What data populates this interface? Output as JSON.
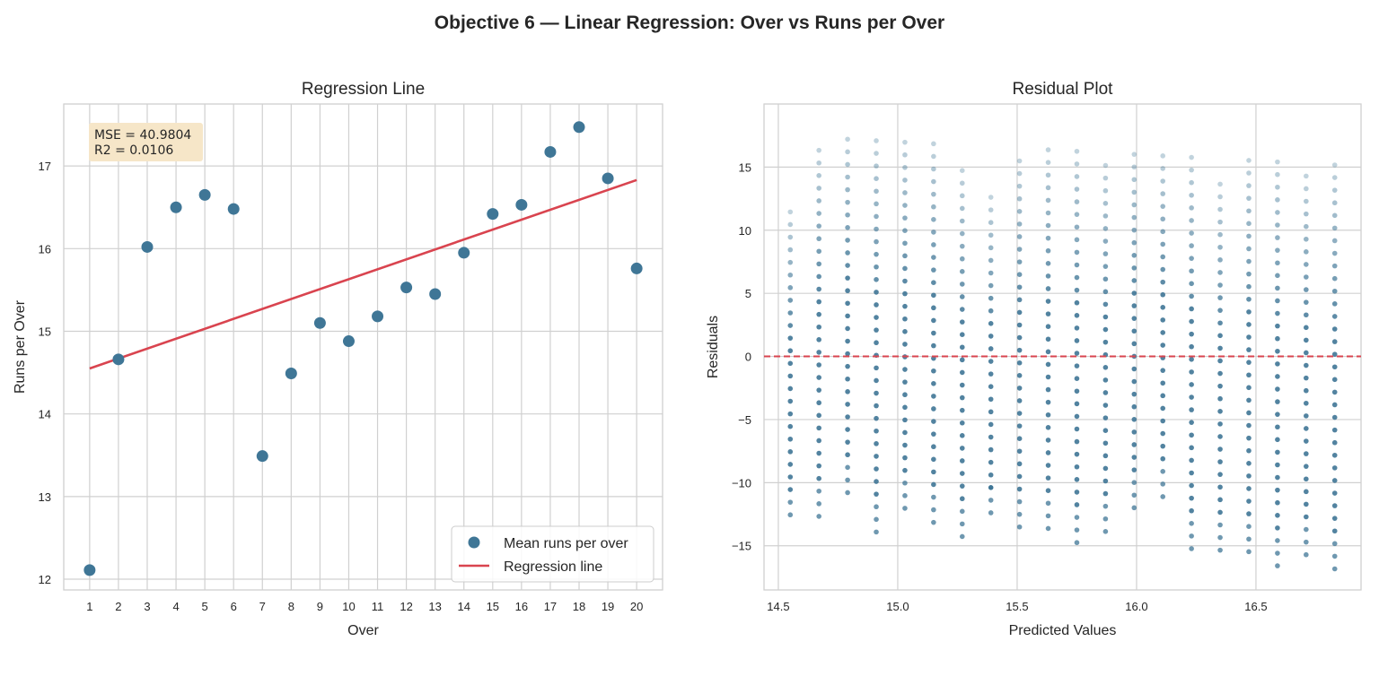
{
  "figure": {
    "suptitle": "Objective 6 — Linear Regression: Over vs Runs per Over"
  },
  "colors": {
    "point": "#3f7696",
    "line": "#d9444f",
    "grid": "#d0d0d0",
    "annotation_bg": "#f6e6c8"
  },
  "chart_data": [
    {
      "type": "scatter",
      "title": "Regression Line",
      "xlabel": "Over",
      "ylabel": "Runs per Over",
      "xlim": [
        0.1,
        20.9
      ],
      "ylim": [
        11.87,
        17.75
      ],
      "xticks": [
        1,
        2,
        3,
        4,
        5,
        6,
        7,
        8,
        9,
        10,
        11,
        12,
        13,
        14,
        15,
        16,
        17,
        18,
        19,
        20
      ],
      "yticks": [
        12,
        13,
        14,
        15,
        16,
        17
      ],
      "grid": true,
      "legend_position": "lower right",
      "series": [
        {
          "name": "Mean runs per over",
          "kind": "scatter",
          "x": [
            1,
            2,
            3,
            4,
            5,
            6,
            7,
            8,
            9,
            10,
            11,
            12,
            13,
            14,
            15,
            16,
            17,
            18,
            19,
            20
          ],
          "y": [
            12.11,
            14.66,
            16.02,
            16.5,
            16.65,
            16.48,
            13.49,
            14.49,
            15.1,
            14.88,
            15.18,
            15.53,
            15.45,
            15.95,
            16.42,
            16.53,
            17.17,
            17.47,
            16.85,
            15.76
          ]
        },
        {
          "name": "Regression line",
          "kind": "line",
          "x": [
            1,
            20
          ],
          "y": [
            14.55,
            16.83
          ]
        }
      ],
      "annotation": {
        "mse": "MSE = 40.9804",
        "r2": "R2  = 0.0106"
      }
    },
    {
      "type": "scatter",
      "title": "Residual Plot",
      "xlabel": "Predicted Values",
      "ylabel": "Residuals",
      "xlim": [
        14.44,
        16.94
      ],
      "ylim": [
        -18.5,
        20.0
      ],
      "xticks": [
        14.5,
        15.0,
        15.5,
        16.0,
        16.5
      ],
      "xtick_labels": [
        "14.5",
        "15.0",
        "15.5",
        "16.0",
        "16.5"
      ],
      "yticks": [
        -15,
        -10,
        -5,
        0,
        5,
        10,
        15
      ],
      "grid": true,
      "reference_line": {
        "y": 0,
        "style": "dashed"
      },
      "columns": [
        {
          "x": 14.55,
          "min": -12.55,
          "max": 12.45
        },
        {
          "x": 14.67,
          "min": -12.67,
          "max": 17.33
        },
        {
          "x": 14.79,
          "min": -10.79,
          "max": 18.21
        },
        {
          "x": 14.91,
          "min": -13.91,
          "max": 18.09
        },
        {
          "x": 15.03,
          "min": -12.03,
          "max": 17.97
        },
        {
          "x": 15.15,
          "min": -13.15,
          "max": 17.85
        },
        {
          "x": 15.27,
          "min": -14.27,
          "max": 15.73
        },
        {
          "x": 15.39,
          "min": -12.39,
          "max": 13.61
        },
        {
          "x": 15.51,
          "min": -13.51,
          "max": 16.49
        },
        {
          "x": 15.63,
          "min": -13.63,
          "max": 17.37
        },
        {
          "x": 15.75,
          "min": -14.75,
          "max": 17.25
        },
        {
          "x": 15.87,
          "min": -13.87,
          "max": 16.13
        },
        {
          "x": 15.99,
          "min": -11.99,
          "max": 17.01
        },
        {
          "x": 16.11,
          "min": -11.11,
          "max": 16.89
        },
        {
          "x": 16.23,
          "min": -15.23,
          "max": 16.77
        },
        {
          "x": 16.35,
          "min": -15.35,
          "max": 14.65
        },
        {
          "x": 16.47,
          "min": -15.47,
          "max": 16.53
        },
        {
          "x": 16.59,
          "min": -16.59,
          "max": 16.41
        },
        {
          "x": 16.71,
          "min": -15.71,
          "max": 15.29
        },
        {
          "x": 16.83,
          "min": -16.83,
          "max": 16.17
        }
      ]
    }
  ]
}
